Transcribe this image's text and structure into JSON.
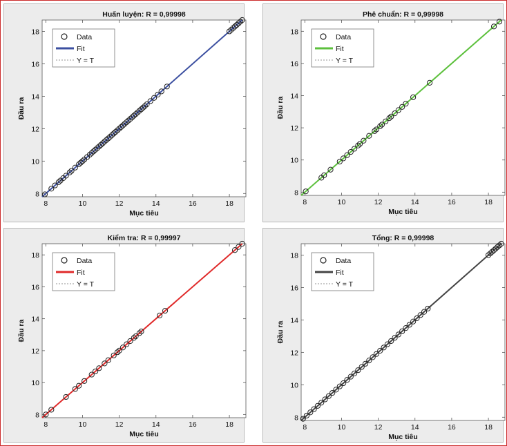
{
  "colors": {
    "frame_border": "#cc2a2a",
    "panel_bg": "#ececec",
    "axes_bg": "#ffffff",
    "ideal_line": "#a8a8a8",
    "marker": "#222222"
  },
  "chart_data": [
    {
      "type": "scatter",
      "title": "Huấn luyện: R = 0,99998",
      "xlabel": "Mục tiêu",
      "ylabel": "Đầu ra",
      "xlim": [
        7.8,
        18.9
      ],
      "ylim": [
        7.8,
        18.7
      ],
      "xticks": [
        "8",
        "10",
        "12",
        "14",
        "16",
        "18"
      ],
      "yticks": [
        "8",
        "10",
        "12",
        "14",
        "16",
        "18"
      ],
      "grid": false,
      "legend_position": "top-left",
      "legend": [
        "Data",
        "Fit",
        "Y = T"
      ],
      "fit_color": "#3b4fa0",
      "fit": {
        "slope": 1.0,
        "intercept": 0.0
      },
      "points": {
        "x": [
          7.95,
          8.3,
          8.5,
          8.7,
          8.8,
          8.95,
          9.1,
          9.3,
          9.4,
          9.6,
          9.8,
          9.9,
          10.0,
          10.1,
          10.25,
          10.4,
          10.5,
          10.6,
          10.7,
          10.8,
          10.9,
          11.0,
          11.1,
          11.2,
          11.3,
          11.4,
          11.5,
          11.6,
          11.7,
          11.8,
          11.9,
          12.0,
          12.1,
          12.2,
          12.3,
          12.4,
          12.5,
          12.6,
          12.7,
          12.8,
          12.9,
          13.0,
          13.1,
          13.2,
          13.3,
          13.4,
          13.5,
          13.7,
          13.9,
          14.1,
          14.3,
          14.6,
          18.0,
          18.1,
          18.2,
          18.3,
          18.4,
          18.5,
          18.6,
          18.7
        ],
        "y": [
          7.95,
          8.3,
          8.5,
          8.7,
          8.8,
          8.95,
          9.1,
          9.3,
          9.4,
          9.6,
          9.8,
          9.9,
          10.0,
          10.1,
          10.25,
          10.4,
          10.5,
          10.6,
          10.7,
          10.8,
          10.9,
          11.0,
          11.1,
          11.2,
          11.3,
          11.4,
          11.5,
          11.6,
          11.7,
          11.8,
          11.9,
          12.0,
          12.1,
          12.2,
          12.3,
          12.4,
          12.5,
          12.6,
          12.7,
          12.8,
          12.9,
          13.0,
          13.1,
          13.2,
          13.3,
          13.4,
          13.5,
          13.7,
          13.9,
          14.1,
          14.3,
          14.6,
          18.0,
          18.1,
          18.2,
          18.3,
          18.4,
          18.5,
          18.6,
          18.7
        ]
      }
    },
    {
      "type": "scatter",
      "title": "Phê chuẩn: R = 0,99998",
      "xlabel": "Mục tiêu",
      "ylabel": "Đầu ra",
      "xlim": [
        7.8,
        18.9
      ],
      "ylim": [
        7.8,
        18.7
      ],
      "xticks": [
        "8",
        "10",
        "12",
        "14",
        "16",
        "18"
      ],
      "yticks": [
        "8",
        "10",
        "12",
        "14",
        "16",
        "18"
      ],
      "grid": false,
      "legend_position": "top-left",
      "legend": [
        "Data",
        "Fit",
        "Y = T"
      ],
      "fit_color": "#5cc03c",
      "fit": {
        "slope": 1.0,
        "intercept": 0.0
      },
      "points": {
        "x": [
          8.05,
          8.9,
          9.05,
          9.4,
          9.9,
          10.1,
          10.3,
          10.5,
          10.7,
          10.9,
          11.0,
          11.2,
          11.5,
          11.8,
          11.9,
          12.1,
          12.2,
          12.4,
          12.6,
          12.7,
          12.9,
          13.1,
          13.3,
          13.5,
          13.9,
          14.8,
          18.3,
          18.6
        ],
        "y": [
          8.05,
          8.9,
          9.05,
          9.4,
          9.9,
          10.1,
          10.3,
          10.5,
          10.7,
          10.9,
          11.0,
          11.2,
          11.5,
          11.8,
          11.9,
          12.1,
          12.2,
          12.4,
          12.6,
          12.7,
          12.9,
          13.1,
          13.3,
          13.5,
          13.9,
          14.8,
          18.3,
          18.6
        ]
      }
    },
    {
      "type": "scatter",
      "title": "Kiểm tra: R = 0,99997",
      "xlabel": "Mục tiêu",
      "ylabel": "Đầu ra",
      "xlim": [
        7.8,
        18.9
      ],
      "ylim": [
        7.8,
        18.7
      ],
      "xticks": [
        "8",
        "10",
        "12",
        "14",
        "16",
        "18"
      ],
      "yticks": [
        "8",
        "10",
        "12",
        "14",
        "16",
        "18"
      ],
      "grid": false,
      "legend_position": "top-left",
      "legend": [
        "Data",
        "Fit",
        "Y = T"
      ],
      "fit_color": "#e02a2a",
      "fit": {
        "slope": 1.0,
        "intercept": 0.0
      },
      "points": {
        "x": [
          8.0,
          8.3,
          9.1,
          9.6,
          9.8,
          10.1,
          10.5,
          10.7,
          10.9,
          11.2,
          11.4,
          11.7,
          11.9,
          12.0,
          12.2,
          12.4,
          12.6,
          12.8,
          12.9,
          13.1,
          13.2,
          14.2,
          14.5,
          18.3,
          18.5,
          18.7
        ],
        "y": [
          8.0,
          8.3,
          9.1,
          9.6,
          9.8,
          10.1,
          10.5,
          10.7,
          10.9,
          11.2,
          11.4,
          11.7,
          11.9,
          12.0,
          12.2,
          12.4,
          12.6,
          12.8,
          12.9,
          13.1,
          13.2,
          14.2,
          14.5,
          18.3,
          18.5,
          18.7
        ]
      }
    },
    {
      "type": "scatter",
      "title": "Tổng: R = 0,99998",
      "xlabel": "Mục tiêu",
      "ylabel": "Đầu ra",
      "xlim": [
        7.8,
        18.9
      ],
      "ylim": [
        7.8,
        18.7
      ],
      "xticks": [
        "8",
        "10",
        "12",
        "14",
        "16",
        "18"
      ],
      "yticks": [
        "8",
        "10",
        "12",
        "14",
        "16",
        "18"
      ],
      "grid": false,
      "legend_position": "top-left",
      "legend": [
        "Data",
        "Fit",
        "Y = T"
      ],
      "fit_color": "#444444",
      "fit": {
        "slope": 1.0,
        "intercept": 0.0
      },
      "points": {
        "x": [
          7.9,
          8.1,
          8.3,
          8.5,
          8.7,
          8.9,
          9.1,
          9.3,
          9.5,
          9.7,
          9.9,
          10.1,
          10.3,
          10.5,
          10.7,
          10.9,
          11.1,
          11.3,
          11.5,
          11.7,
          11.9,
          12.1,
          12.3,
          12.5,
          12.7,
          12.9,
          13.1,
          13.3,
          13.5,
          13.7,
          13.9,
          14.1,
          14.3,
          14.5,
          14.7,
          18.0,
          18.1,
          18.2,
          18.3,
          18.4,
          18.5,
          18.6,
          18.7
        ],
        "y": [
          7.9,
          8.1,
          8.3,
          8.5,
          8.7,
          8.9,
          9.1,
          9.3,
          9.5,
          9.7,
          9.9,
          10.1,
          10.3,
          10.5,
          10.7,
          10.9,
          11.1,
          11.3,
          11.5,
          11.7,
          11.9,
          12.1,
          12.3,
          12.5,
          12.7,
          12.9,
          13.1,
          13.3,
          13.5,
          13.7,
          13.9,
          14.1,
          14.3,
          14.5,
          14.7,
          18.0,
          18.1,
          18.2,
          18.3,
          18.4,
          18.5,
          18.6,
          18.7
        ]
      }
    }
  ]
}
